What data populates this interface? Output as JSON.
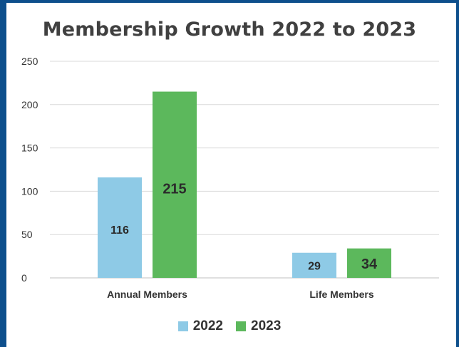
{
  "chart_data": {
    "type": "bar",
    "title": "Membership Growth 2022 to 2023",
    "categories": [
      "Annual Members",
      "Life Members"
    ],
    "series": [
      {
        "name": "2022",
        "values": [
          116,
          29
        ],
        "color": "#8ecae6"
      },
      {
        "name": "2023",
        "values": [
          215,
          34
        ],
        "color": "#5cb85c"
      }
    ],
    "ylim": [
      0,
      250
    ],
    "yticks": [
      0,
      50,
      100,
      150,
      200,
      250
    ],
    "grid": true,
    "legend": "bottom-center",
    "xlabel": "",
    "ylabel": ""
  }
}
